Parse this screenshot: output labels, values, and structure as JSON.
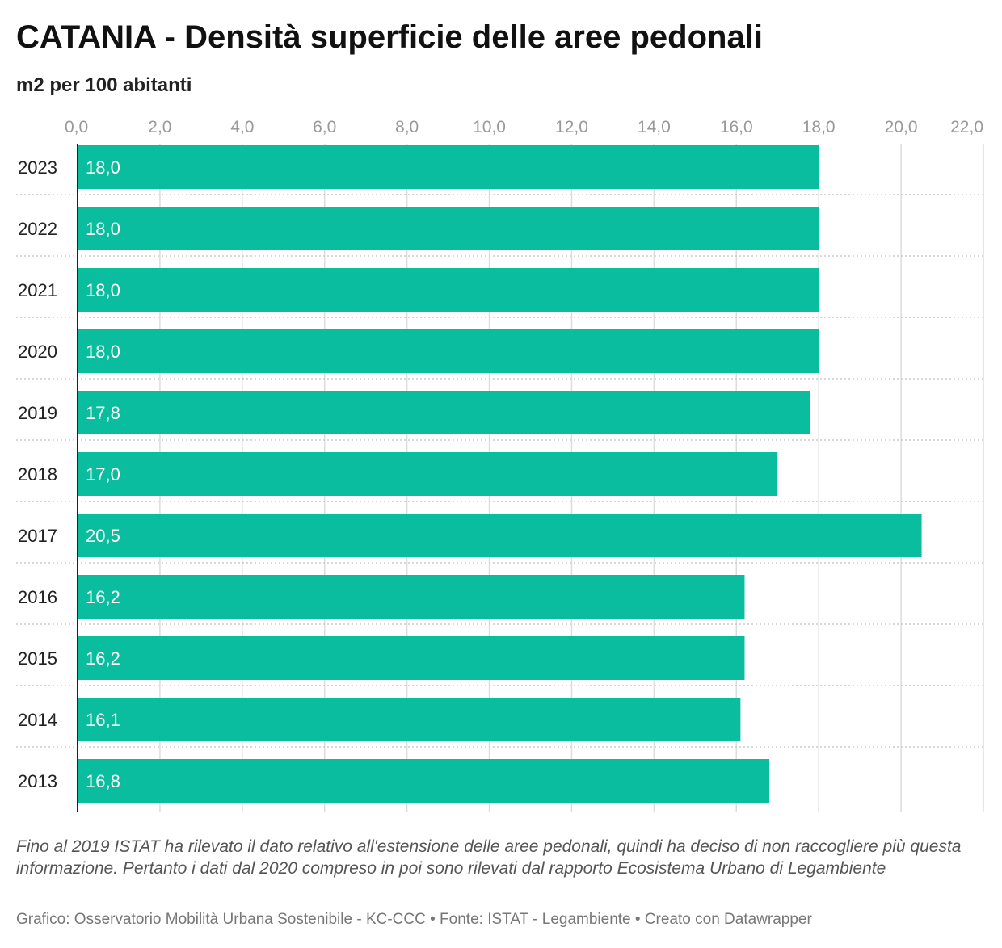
{
  "chart_data": {
    "type": "bar",
    "orientation": "horizontal",
    "title": "CATANIA - Densità superficie delle aree pedonali",
    "subtitle": "m2 per 100 abitanti",
    "categories": [
      "2023",
      "2022",
      "2021",
      "2020",
      "2019",
      "2018",
      "2017",
      "2016",
      "2015",
      "2014",
      "2013"
    ],
    "values": [
      18.0,
      18.0,
      18.0,
      18.0,
      17.8,
      17.0,
      20.5,
      16.2,
      16.2,
      16.1,
      16.8
    ],
    "value_labels": [
      "18,0",
      "18,0",
      "18,0",
      "18,0",
      "17,8",
      "17,0",
      "20,5",
      "16,2",
      "16,2",
      "16,1",
      "16,8"
    ],
    "xlim": [
      0,
      22
    ],
    "x_ticks": [
      0,
      2,
      4,
      6,
      8,
      10,
      12,
      14,
      16,
      18,
      20,
      22
    ],
    "x_tick_labels": [
      "0,0",
      "2,0",
      "4,0",
      "6,0",
      "8,0",
      "10,0",
      "12,0",
      "14,0",
      "16,0",
      "18,0",
      "20,0",
      "22,0"
    ],
    "x_axis_position": "top",
    "grid": true,
    "bar_color": "#0abd9f",
    "note": "Fino al 2019 ISTAT ha rilevato il dato relativo all'estensione delle aree pedonali, quindi ha deciso di non raccogliere più questa informazione. Pertanto i dati dal 2020 compreso in poi sono rilevati dal rapporto Ecosistema Urbano di Legambiente",
    "footer": "Grafico: Osservatorio Mobilità Urbana Sostenibile - KC-CCC • Fonte: ISTAT - Legambiente • Creato con Datawrapper"
  }
}
